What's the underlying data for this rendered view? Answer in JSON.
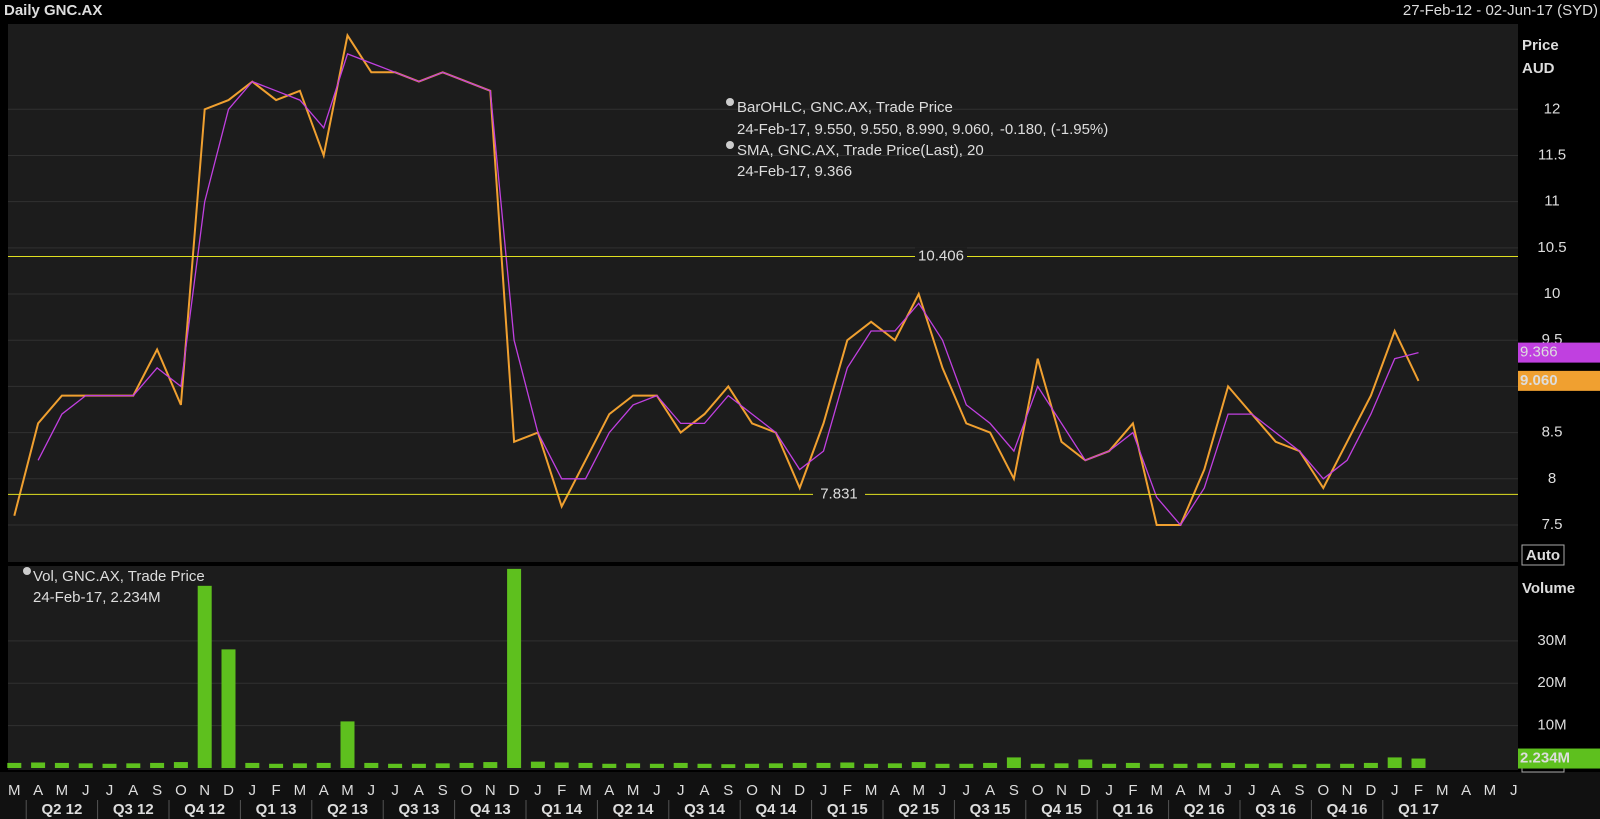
{
  "header": {
    "title": "Daily GNC.AX",
    "range": "27-Feb-12 - 02-Jun-17 (SYD)"
  },
  "chart_data": [
    {
      "type": "line",
      "axis_title": "Price",
      "axis_unit": "AUD",
      "categories": [
        "M",
        "A",
        "M",
        "J",
        "J",
        "A",
        "S",
        "O",
        "N",
        "D",
        "J",
        "F",
        "M",
        "A",
        "M",
        "J",
        "J",
        "A",
        "S",
        "O",
        "N",
        "D",
        "J",
        "F",
        "M",
        "A",
        "M",
        "J",
        "J",
        "A",
        "S",
        "O",
        "N",
        "D",
        "J",
        "F",
        "M",
        "A",
        "M",
        "J",
        "J",
        "A",
        "S",
        "O",
        "N",
        "D",
        "J",
        "F",
        "M",
        "A",
        "M",
        "J",
        "J",
        "A",
        "S",
        "O",
        "N",
        "D",
        "J",
        "F",
        "M",
        "A",
        "M",
        "J"
      ],
      "quarters": [
        "Q2 12",
        "Q3 12",
        "Q4 12",
        "Q1 13",
        "Q2 13",
        "Q3 13",
        "Q4 13",
        "Q1 14",
        "Q2 14",
        "Q3 14",
        "Q4 14",
        "Q1 15",
        "Q2 15",
        "Q3 15",
        "Q4 15",
        "Q1 16",
        "Q2 16",
        "Q3 16",
        "Q4 16",
        "Q1 17"
      ],
      "series": [
        {
          "name": "BarOHLC, GNC.AX, Trade Price",
          "color": "#f0a030",
          "detail": "24-Feb-17, 9.550, 9.550, 8.990, 9.060,",
          "change": "-0.180, (-1.95%)",
          "values": [
            7.6,
            8.6,
            8.9,
            8.9,
            8.9,
            8.9,
            9.4,
            8.8,
            12.0,
            12.1,
            12.3,
            12.1,
            12.2,
            11.5,
            12.8,
            12.4,
            12.4,
            12.3,
            12.4,
            12.3,
            12.2,
            8.4,
            8.5,
            7.7,
            8.2,
            8.7,
            8.9,
            8.9,
            8.5,
            8.7,
            9.0,
            8.6,
            8.5,
            7.9,
            8.6,
            9.5,
            9.7,
            9.5,
            10.0,
            9.2,
            8.6,
            8.5,
            8.0,
            9.3,
            8.4,
            8.2,
            8.3,
            8.6,
            7.5,
            7.5,
            8.1,
            9.0,
            8.7,
            8.4,
            8.3,
            7.9,
            8.4,
            8.9,
            9.6,
            9.06,
            null,
            null,
            null,
            null
          ],
          "last": {
            "value": 9.06,
            "label": "9.060"
          }
        },
        {
          "name": "SMA, GNC.AX, Trade Price(Last),  20",
          "color": "#c040e0",
          "detail": "24-Feb-17, 9.366",
          "values": [
            null,
            8.2,
            8.7,
            8.9,
            8.9,
            8.9,
            9.2,
            9.0,
            11.0,
            12.0,
            12.3,
            12.2,
            12.1,
            11.8,
            12.6,
            12.5,
            12.4,
            12.3,
            12.4,
            12.3,
            12.2,
            9.5,
            8.5,
            8.0,
            8.0,
            8.5,
            8.8,
            8.9,
            8.6,
            8.6,
            8.9,
            8.7,
            8.5,
            8.1,
            8.3,
            9.2,
            9.6,
            9.6,
            9.9,
            9.5,
            8.8,
            8.6,
            8.3,
            9.0,
            8.6,
            8.2,
            8.3,
            8.5,
            7.8,
            7.5,
            7.9,
            8.7,
            8.7,
            8.5,
            8.3,
            8.0,
            8.2,
            8.7,
            9.3,
            9.366,
            null,
            null,
            null,
            null
          ],
          "last": 9.366
        }
      ],
      "hlines": [
        10.406,
        7.831
      ],
      "ylim": [
        7.11,
        12.88
      ],
      "yticks": [
        7.5,
        8,
        8.5,
        9,
        9.5,
        10,
        10.5,
        11,
        11.5,
        12
      ],
      "grid": true,
      "scale_mode": "Auto"
    },
    {
      "type": "bar",
      "axis_title": "Volume",
      "series": [
        {
          "name": "Vol, GNC.AX, Trade Price",
          "color": "#5ec01e",
          "detail": "24-Feb-17, 2.234M",
          "values": [
            1200000,
            1300000,
            1200000,
            1100000,
            1000000,
            1100000,
            1200000,
            1400000,
            43000000,
            28000000,
            1200000,
            1000000,
            1100000,
            1200000,
            11000000,
            1200000,
            1000000,
            1000000,
            1100000,
            1200000,
            1400000,
            47000000,
            1500000,
            1300000,
            1200000,
            1000000,
            1100000,
            1000000,
            1200000,
            1000000,
            900000,
            1000000,
            1100000,
            1200000,
            1200000,
            1300000,
            1000000,
            1100000,
            1400000,
            1000000,
            1000000,
            1200000,
            2500000,
            1000000,
            1100000,
            2000000,
            1000000,
            1200000,
            1000000,
            1000000,
            1100000,
            1200000,
            1000000,
            1100000,
            900000,
            1000000,
            1000000,
            1200000,
            2500000,
            2234000,
            null,
            null,
            null,
            null
          ],
          "last": {
            "value": 2234000,
            "label": "2.234M"
          }
        }
      ],
      "ylim": [
        0,
        46500000
      ],
      "yticks": [
        {
          "value": 10000000,
          "label": "10M"
        },
        {
          "value": 20000000,
          "label": "20M"
        },
        {
          "value": 30000000,
          "label": "30M"
        }
      ],
      "grid": true,
      "scale_mode": "Auto"
    }
  ]
}
